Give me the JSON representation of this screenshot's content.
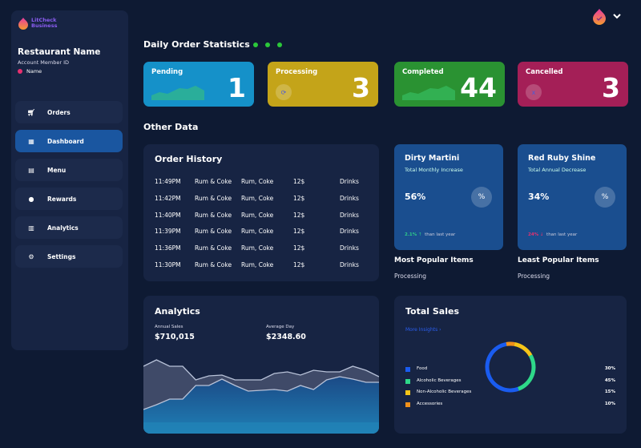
{
  "brand": {
    "line1": "LitCheck",
    "line2": "Business"
  },
  "account": {
    "restaurant": "Restaurant Name",
    "member_id": "Account Member ID",
    "name": "Name"
  },
  "nav": [
    {
      "label": "Orders",
      "icon": "cart-icon"
    },
    {
      "label": "Dashboard",
      "icon": "dashboard-icon",
      "active": true
    },
    {
      "label": "Menu",
      "icon": "menu-icon"
    },
    {
      "label": "Rewards",
      "icon": "rewards-icon"
    },
    {
      "label": "Analytics",
      "icon": "analytics-icon"
    },
    {
      "label": "Settings",
      "icon": "gear-icon"
    }
  ],
  "stats": {
    "title": "Daily Order Statistics",
    "cards": [
      {
        "label": "Pending",
        "value": "1",
        "color": "#1591c9"
      },
      {
        "label": "Processing",
        "value": "3",
        "color": "#c4a419",
        "icon": "refresh-icon"
      },
      {
        "label": "Completed",
        "value": "44",
        "color": "#2a9232"
      },
      {
        "label": "Cancelled",
        "value": "3",
        "color": "#a41f57",
        "icon": "x"
      }
    ]
  },
  "other_title": "Other Data",
  "order_history": {
    "title": "Order History",
    "rows": [
      [
        "11:49PM",
        "Rum & Coke",
        "Rum, Coke",
        "12$",
        "Drinks"
      ],
      [
        "11:42PM",
        "Rum & Coke",
        "Rum, Coke",
        "12$",
        "Drinks"
      ],
      [
        "11:40PM",
        "Rum & Coke",
        "Rum, Coke",
        "12$",
        "Drinks"
      ],
      [
        "11:39PM",
        "Rum & Coke",
        "Rum, Coke",
        "12$",
        "Drinks"
      ],
      [
        "11:36PM",
        "Rum & Coke",
        "Rum, Coke",
        "12$",
        "Drinks"
      ],
      [
        "11:30PM",
        "Rum & Coke",
        "Rum, Coke",
        "12$",
        "Drinks"
      ]
    ]
  },
  "popular": [
    {
      "name": "Dirty Martini",
      "sub": "Total Monthly Increase",
      "value": "56%",
      "symbol": "%",
      "change": "2.1%",
      "arrow": "↑",
      "change_color": "#2ecc8a",
      "footer": "than last year",
      "heading": "Most Popular Items",
      "status": "Processing"
    },
    {
      "name": "Red Ruby Shine",
      "sub": "Total Annual Decrease",
      "value": "34%",
      "symbol": "%",
      "change": "24%",
      "arrow": "↓",
      "change_color": "#e8306f",
      "footer": "than last year",
      "heading": "Least Popular Items",
      "status": "Processing"
    }
  ],
  "analytics": {
    "title": "Analytics",
    "annual_label": "Annual Sales",
    "annual": "$710,015",
    "avg_label": "Average Day",
    "avg": "$2348.60",
    "chart_data": {
      "type": "area",
      "series": [
        {
          "values": [
            84,
            92,
            84,
            84,
            67,
            72,
            73,
            67,
            67,
            67,
            75,
            77,
            73,
            79,
            77,
            77,
            84,
            79,
            71
          ]
        },
        {
          "values": [
            30,
            36,
            43,
            43,
            60,
            60,
            68,
            60,
            53,
            54,
            55,
            53,
            60,
            55,
            67,
            71,
            68,
            64,
            64
          ]
        }
      ]
    }
  },
  "total_sales": {
    "title": "Total Sales",
    "link": "More Insights ›",
    "chart_data": {
      "type": "pie",
      "categories": [
        "Food",
        "Alcoholic Beverages",
        "Non-Alcoholic Beverages",
        "Accessories"
      ],
      "labels": [
        "30%",
        "45%",
        "15%",
        "10%"
      ],
      "values": [
        30,
        45,
        15,
        10
      ],
      "colors": [
        "#1a5cf0",
        "#2ed889",
        "#f5c518",
        "#f0901a"
      ]
    }
  }
}
